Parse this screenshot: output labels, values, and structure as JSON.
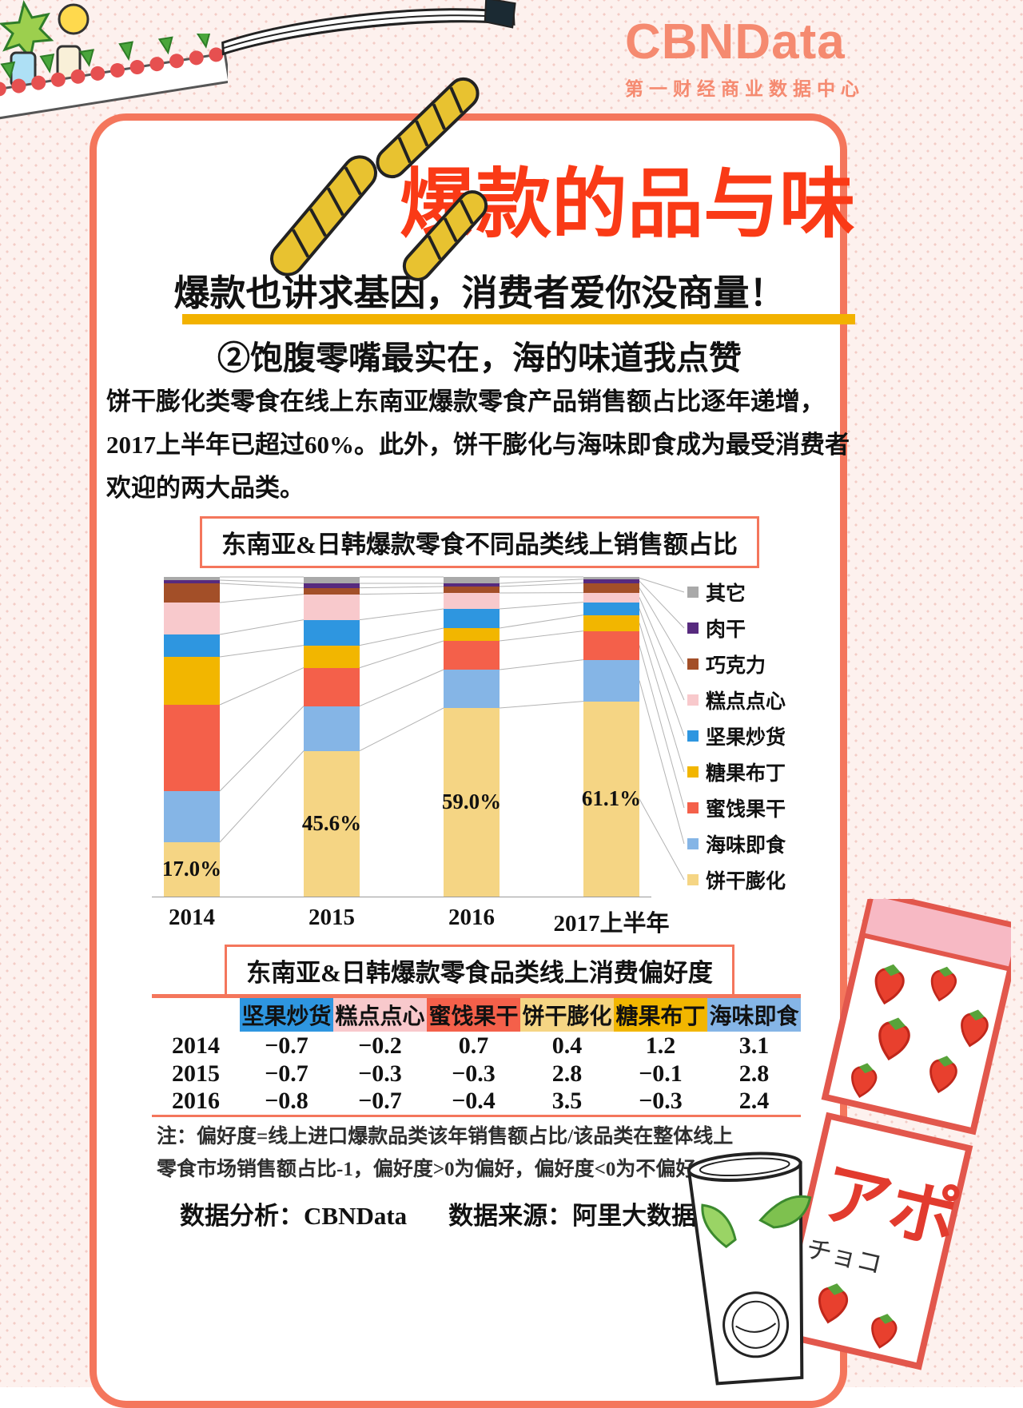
{
  "logo": {
    "title": "CBNData",
    "subtitle": "第一财经商业数据中心"
  },
  "header": {
    "main_title": "爆款的品与味",
    "subtitle": "爆款也讲求基因，消费者爱你没商量！",
    "section_title": "②饱腹零嘴最实在，海的味道我点赞",
    "intro": "饼干膨化类零食在线上东南亚爆款零食产品销售额占比逐年递增，2017上半年已超过60%。此外，饼干膨化与海味即食成为最受消费者欢迎的两大品类。"
  },
  "chart_data": [
    {
      "type": "bar",
      "stacked": true,
      "title": "东南亚&日韩爆款零食不同品类线上销售额占比",
      "categories": [
        "2014",
        "2015",
        "2016",
        "2017上半年"
      ],
      "unit": "percent of total, each bar sums to 100",
      "ylim": [
        0,
        100
      ],
      "legend_position": "right",
      "legend_top_to_bottom": [
        "其它",
        "肉干",
        "巧克力",
        "糕点点心",
        "坚果炒货",
        "糖果布丁",
        "蜜饯果干",
        "海味即食",
        "饼干膨化"
      ],
      "series_bottom_up": [
        {
          "name": "饼干膨化",
          "color": "#f5d584",
          "values": [
            17.0,
            45.6,
            59.0,
            61.1
          ],
          "labels": [
            "17.0%",
            "45.6%",
            "59.0%",
            "61.1%"
          ]
        },
        {
          "name": "海味即食",
          "color": "#85b5e6",
          "values": [
            16.0,
            14.0,
            12.0,
            13.0
          ]
        },
        {
          "name": "蜜饯果干",
          "color": "#f4604a",
          "values": [
            27.0,
            12.0,
            9.0,
            9.0
          ]
        },
        {
          "name": "糖果布丁",
          "color": "#f2b600",
          "values": [
            15.0,
            7.0,
            4.0,
            5.0
          ]
        },
        {
          "name": "坚果炒货",
          "color": "#2e96e0",
          "values": [
            7.0,
            8.0,
            6.0,
            4.0
          ]
        },
        {
          "name": "糕点点心",
          "color": "#f8c9cc",
          "values": [
            10.0,
            8.0,
            5.0,
            3.0
          ]
        },
        {
          "name": "巧克力",
          "color": "#a34f28",
          "values": [
            6.0,
            2.0,
            2.0,
            3.0
          ]
        },
        {
          "name": "肉干",
          "color": "#572a7e",
          "values": [
            1.0,
            1.4,
            1.0,
            1.2
          ]
        },
        {
          "name": "其它",
          "color": "#a9a9a9",
          "values": [
            1.0,
            2.0,
            2.0,
            0.7
          ]
        }
      ]
    },
    {
      "type": "table",
      "title": "东南亚&日韩爆款零食品类线上消费偏好度",
      "columns": [
        "坚果炒货",
        "糕点点心",
        "蜜饯果干",
        "饼干膨化",
        "糖果布丁",
        "海味即食"
      ],
      "column_colors": [
        "#2e96e0",
        "#f8c9cc",
        "#f4604a",
        "#f5d584",
        "#f2b600",
        "#85b5e6"
      ],
      "rows": [
        {
          "year": "2014",
          "values": [
            "−0.7",
            "−0.2",
            "0.7",
            "0.4",
            "1.2",
            "3.1"
          ]
        },
        {
          "year": "2015",
          "values": [
            "−0.7",
            "−0.3",
            "−0.3",
            "2.8",
            "−0.1",
            "2.8"
          ]
        },
        {
          "year": "2016",
          "values": [
            "−0.8",
            "−0.7",
            "−0.4",
            "3.5",
            "−0.3",
            "2.4"
          ]
        }
      ]
    }
  ],
  "note": "注：偏好度=线上进口爆款品类该年销售额占比/该品类在整体线上零食市场销售额占比-1，偏好度>0为偏好，偏好度<0为不偏好",
  "footer": {
    "analysis": "数据分析：CBNData",
    "source": "数据来源：阿里大数据"
  },
  "decor": {
    "candy_text_1": "アポ",
    "candy_text_2": "チョコ"
  }
}
